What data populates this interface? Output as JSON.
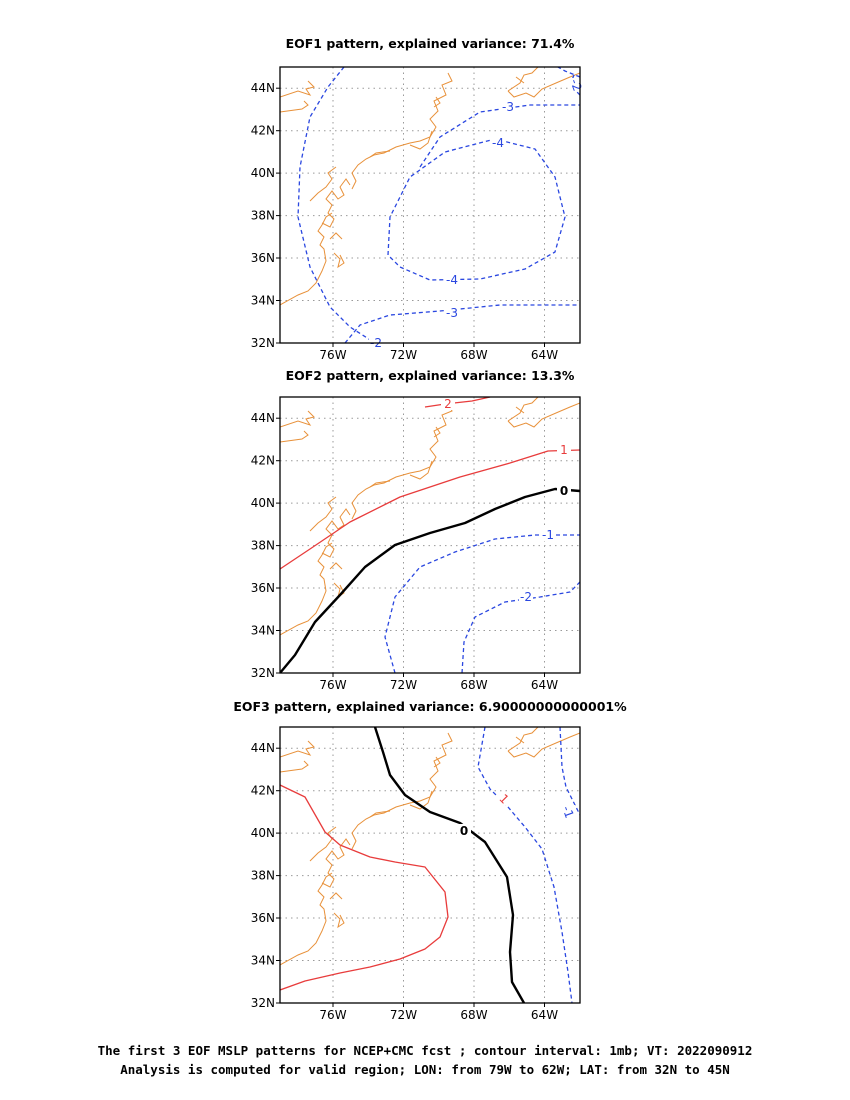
{
  "chart_data": [
    {
      "type": "contour",
      "title": "EOF1 pattern, explained variance: 71.4%",
      "x_ticks": [
        "76W",
        "72W",
        "68W",
        "64W"
      ],
      "y_ticks": [
        "32N",
        "34N",
        "36N",
        "38N",
        "40N",
        "42N",
        "44N"
      ],
      "lon_range": [
        -79,
        -62
      ],
      "lat_range": [
        32,
        45
      ],
      "grid": "dotted",
      "contour_labels": [
        "-3",
        "-4",
        "-4",
        "-3",
        "-2",
        "-2",
        "-2"
      ]
    },
    {
      "type": "contour",
      "title": "EOF2 pattern, explained variance: 13.3%",
      "x_ticks": [
        "76W",
        "72W",
        "68W",
        "64W"
      ],
      "y_ticks": [
        "32N",
        "34N",
        "36N",
        "38N",
        "40N",
        "42N",
        "44N"
      ],
      "lon_range": [
        -79,
        -62
      ],
      "lat_range": [
        32,
        45
      ],
      "grid": "dotted",
      "contour_labels": [
        "2",
        "1",
        "0",
        "-1",
        "-2"
      ]
    },
    {
      "type": "contour",
      "title": "EOF3 pattern, explained variance: 6.90000000000001%",
      "x_ticks": [
        "76W",
        "72W",
        "68W",
        "64W"
      ],
      "y_ticks": [
        "32N",
        "34N",
        "36N",
        "38N",
        "40N",
        "42N",
        "44N"
      ],
      "lon_range": [
        -79,
        -62
      ],
      "lat_range": [
        32,
        45
      ],
      "grid": "dotted",
      "contour_labels": [
        "0",
        "1",
        "-1",
        "-2"
      ]
    }
  ],
  "caption": {
    "line1": "The first 3 EOF MSLP patterns for NCEP+CMC fcst ; contour interval: 1mb; VT: 2022090912",
    "line2": "Analysis is computed for valid region; LON: from 79W to 62W; LAT: from 32N to 45N"
  },
  "colors": {
    "coast": "#e8913a",
    "positive": "#e83c3c",
    "negative": "#2a47e0",
    "zero": "#000000",
    "grid": "#9a9a9a"
  }
}
